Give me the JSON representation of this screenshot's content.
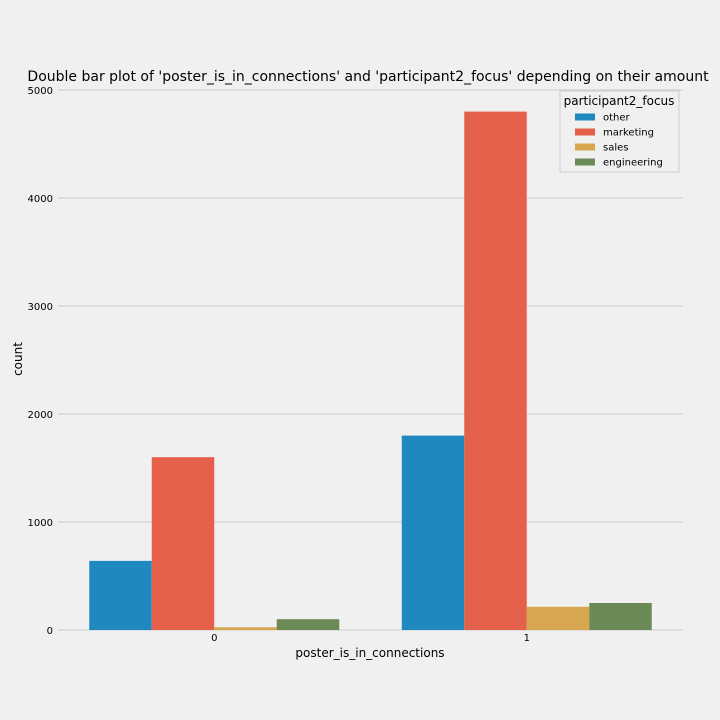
{
  "chart_data": {
    "type": "bar",
    "title": "Double bar plot of 'poster_is_in_connections' and 'participant2_focus' depending on their amount",
    "xlabel": "poster_is_in_connections",
    "ylabel": "count",
    "categories": [
      "0",
      "1"
    ],
    "ylim": [
      0,
      5000
    ],
    "yticks": [
      0,
      1000,
      2000,
      3000,
      4000,
      5000
    ],
    "grid": true,
    "legend": {
      "title": "participant2_focus",
      "position": "top-right"
    },
    "series": [
      {
        "name": "other",
        "color": "#1f88be",
        "values": [
          640,
          1800
        ]
      },
      {
        "name": "marketing",
        "color": "#e5604a",
        "values": [
          1600,
          4800
        ]
      },
      {
        "name": "sales",
        "color": "#d8a64e",
        "values": [
          25,
          215
        ]
      },
      {
        "name": "engineering",
        "color": "#6b8a55",
        "values": [
          100,
          250
        ]
      }
    ]
  }
}
